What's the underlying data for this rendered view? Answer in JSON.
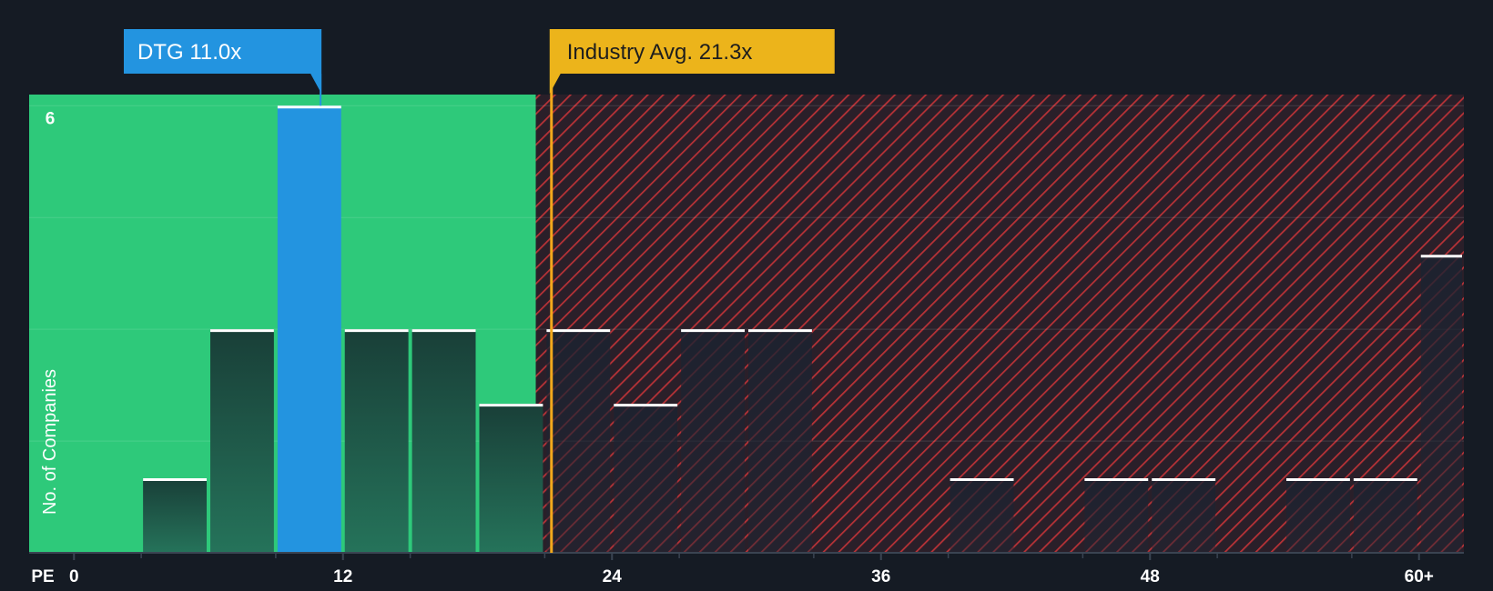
{
  "chart_data": {
    "type": "bar",
    "xlabel": "PE",
    "ylabel": "No. of Companies",
    "xlim": [
      -2,
      62
    ],
    "ylim": [
      0,
      6.15
    ],
    "y_tick_labels": [
      {
        "value": 6,
        "label": "6"
      }
    ],
    "x_ticks": [
      {
        "value": 0,
        "label": "0"
      },
      {
        "value": 12,
        "label": "12"
      },
      {
        "value": 24,
        "label": "24"
      },
      {
        "value": 36,
        "label": "36"
      },
      {
        "value": 48,
        "label": "48"
      },
      {
        "value": 60,
        "label": "60+"
      }
    ],
    "bins": [
      {
        "start": 3,
        "end": 6,
        "count": 1
      },
      {
        "start": 6,
        "end": 9,
        "count": 3
      },
      {
        "start": 9,
        "end": 12,
        "count": 6
      },
      {
        "start": 12,
        "end": 15,
        "count": 3
      },
      {
        "start": 15,
        "end": 18,
        "count": 3
      },
      {
        "start": 18,
        "end": 21,
        "count": 2
      },
      {
        "start": 21,
        "end": 24,
        "count": 3
      },
      {
        "start": 24,
        "end": 27,
        "count": 2
      },
      {
        "start": 27,
        "end": 30,
        "count": 3
      },
      {
        "start": 30,
        "end": 33,
        "count": 3
      },
      {
        "start": 39,
        "end": 42,
        "count": 1
      },
      {
        "start": 45,
        "end": 48,
        "count": 1
      },
      {
        "start": 48,
        "end": 51,
        "count": 1
      },
      {
        "start": 54,
        "end": 57,
        "count": 1
      },
      {
        "start": 57,
        "end": 60,
        "count": 1
      },
      {
        "start": 60,
        "end": 62,
        "count": 4
      }
    ],
    "highlight_bin_start": 9,
    "fair_zone_end": 20.6,
    "company": {
      "label": "DTG 11.0x",
      "value": 11.0
    },
    "industry": {
      "label": "Industry Avg. 21.3x",
      "value": 21.3
    },
    "colors": {
      "background": "#151b24",
      "green_zone": "#2ec97a",
      "red_zone": "#b83237",
      "highlight_bar": "#2394e0",
      "company_badge": "#2394e0",
      "industry_badge": "#ecb41b",
      "industry_line": "#f2a81c"
    }
  }
}
